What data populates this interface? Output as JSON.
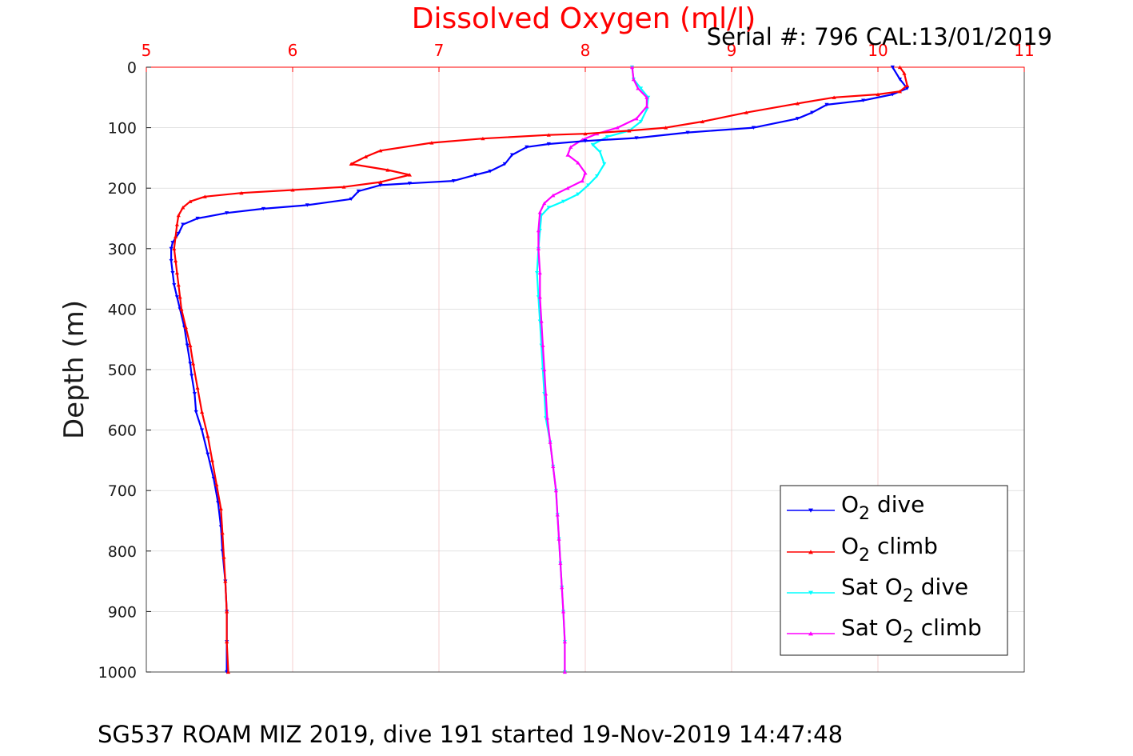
{
  "chart_data": {
    "type": "line",
    "title": "Dissolved Oxygen (ml/l)",
    "title_color": "#ff0000",
    "subtitle": "Serial #: 796  CAL:13/01/2019",
    "ylabel": "Depth (m)",
    "footer": "SG537 ROAM MIZ 2019, dive 191 started 19-Nov-2019 14:47:48",
    "xlim": [
      5,
      11
    ],
    "ylim": [
      0,
      1000
    ],
    "y_reversed": true,
    "x_axis_position": "top",
    "x_ticks": [
      5,
      6,
      7,
      8,
      9,
      10,
      11
    ],
    "y_ticks": [
      0,
      100,
      200,
      300,
      400,
      500,
      600,
      700,
      800,
      900,
      1000
    ],
    "grid": true,
    "legend_position": "bottom-right",
    "series": [
      {
        "name": "O2 dive",
        "legend_main": "O",
        "legend_sub": "2",
        "legend_rest": " dive",
        "color": "#0000ff",
        "marker": "triangle-down",
        "points": [
          [
            10.1,
            0
          ],
          [
            10.15,
            20
          ],
          [
            10.2,
            35
          ],
          [
            10.1,
            45
          ],
          [
            9.9,
            55
          ],
          [
            9.65,
            62
          ],
          [
            9.55,
            75
          ],
          [
            9.45,
            85
          ],
          [
            9.15,
            100
          ],
          [
            8.7,
            108
          ],
          [
            8.35,
            117
          ],
          [
            8.0,
            122
          ],
          [
            7.75,
            127
          ],
          [
            7.6,
            132
          ],
          [
            7.5,
            145
          ],
          [
            7.45,
            160
          ],
          [
            7.35,
            172
          ],
          [
            7.25,
            178
          ],
          [
            7.1,
            188
          ],
          [
            6.8,
            192
          ],
          [
            6.6,
            195
          ],
          [
            6.45,
            205
          ],
          [
            6.4,
            218
          ],
          [
            6.1,
            228
          ],
          [
            5.8,
            234
          ],
          [
            5.55,
            241
          ],
          [
            5.35,
            250
          ],
          [
            5.25,
            260
          ],
          [
            5.22,
            275
          ],
          [
            5.18,
            290
          ],
          [
            5.17,
            300
          ],
          [
            5.17,
            320
          ],
          [
            5.18,
            340
          ],
          [
            5.19,
            360
          ],
          [
            5.21,
            380
          ],
          [
            5.23,
            400
          ],
          [
            5.26,
            430
          ],
          [
            5.28,
            460
          ],
          [
            5.3,
            490
          ],
          [
            5.31,
            510
          ],
          [
            5.33,
            540
          ],
          [
            5.34,
            570
          ],
          [
            5.38,
            600
          ],
          [
            5.42,
            640
          ],
          [
            5.46,
            680
          ],
          [
            5.49,
            720
          ],
          [
            5.51,
            760
          ],
          [
            5.52,
            800
          ],
          [
            5.54,
            850
          ],
          [
            5.55,
            900
          ],
          [
            5.55,
            950
          ],
          [
            5.55,
            1000
          ]
        ]
      },
      {
        "name": "O2 climb",
        "legend_main": "O",
        "legend_sub": "2",
        "legend_rest": " climb",
        "color": "#ff0000",
        "marker": "triangle-up",
        "points": [
          [
            10.15,
            0
          ],
          [
            10.18,
            10
          ],
          [
            10.2,
            30
          ],
          [
            10.15,
            40
          ],
          [
            10.0,
            45
          ],
          [
            9.7,
            50
          ],
          [
            9.45,
            60
          ],
          [
            9.1,
            75
          ],
          [
            8.8,
            90
          ],
          [
            8.55,
            100
          ],
          [
            8.3,
            105
          ],
          [
            8.0,
            110
          ],
          [
            7.75,
            112
          ],
          [
            7.3,
            118
          ],
          [
            6.95,
            125
          ],
          [
            6.6,
            138
          ],
          [
            6.5,
            148
          ],
          [
            6.4,
            160
          ],
          [
            6.65,
            170
          ],
          [
            6.8,
            178
          ],
          [
            6.6,
            190
          ],
          [
            6.35,
            198
          ],
          [
            6.0,
            203
          ],
          [
            5.65,
            208
          ],
          [
            5.4,
            214
          ],
          [
            5.3,
            222
          ],
          [
            5.25,
            232
          ],
          [
            5.22,
            245
          ],
          [
            5.21,
            260
          ],
          [
            5.2,
            280
          ],
          [
            5.19,
            300
          ],
          [
            5.2,
            320
          ],
          [
            5.21,
            340
          ],
          [
            5.22,
            360
          ],
          [
            5.23,
            380
          ],
          [
            5.24,
            400
          ],
          [
            5.27,
            430
          ],
          [
            5.3,
            460
          ],
          [
            5.32,
            490
          ],
          [
            5.35,
            530
          ],
          [
            5.38,
            570
          ],
          [
            5.42,
            610
          ],
          [
            5.45,
            650
          ],
          [
            5.48,
            690
          ],
          [
            5.51,
            730
          ],
          [
            5.52,
            770
          ],
          [
            5.53,
            810
          ],
          [
            5.54,
            850
          ],
          [
            5.55,
            900
          ],
          [
            5.55,
            950
          ],
          [
            5.56,
            1000
          ]
        ]
      },
      {
        "name": "Sat O2 dive",
        "legend_main": "Sat O",
        "legend_sub": "2",
        "legend_rest": " dive",
        "color": "#00ffff",
        "marker": "triangle-down",
        "points": [
          [
            8.32,
            0
          ],
          [
            8.33,
            20
          ],
          [
            8.38,
            35
          ],
          [
            8.43,
            50
          ],
          [
            8.42,
            70
          ],
          [
            8.38,
            90
          ],
          [
            8.3,
            105
          ],
          [
            8.15,
            115
          ],
          [
            8.05,
            128
          ],
          [
            8.1,
            140
          ],
          [
            8.13,
            160
          ],
          [
            8.08,
            180
          ],
          [
            8.02,
            195
          ],
          [
            7.95,
            210
          ],
          [
            7.85,
            222
          ],
          [
            7.75,
            232
          ],
          [
            7.7,
            245
          ],
          [
            7.69,
            270
          ],
          [
            7.68,
            300
          ],
          [
            7.67,
            340
          ],
          [
            7.68,
            380
          ],
          [
            7.69,
            420
          ],
          [
            7.7,
            460
          ],
          [
            7.71,
            500
          ],
          [
            7.72,
            540
          ],
          [
            7.73,
            580
          ],
          [
            7.76,
            620
          ],
          [
            7.78,
            660
          ],
          [
            7.8,
            700
          ],
          [
            7.81,
            740
          ],
          [
            7.82,
            780
          ],
          [
            7.83,
            820
          ],
          [
            7.84,
            860
          ],
          [
            7.85,
            900
          ],
          [
            7.86,
            950
          ],
          [
            7.86,
            1000
          ]
        ]
      },
      {
        "name": "Sat O2 climb",
        "legend_main": "Sat O",
        "legend_sub": "2",
        "legend_rest": " climb",
        "color": "#ff00ff",
        "marker": "triangle-up",
        "points": [
          [
            8.32,
            0
          ],
          [
            8.33,
            20
          ],
          [
            8.36,
            35
          ],
          [
            8.42,
            50
          ],
          [
            8.42,
            65
          ],
          [
            8.35,
            85
          ],
          [
            8.22,
            100
          ],
          [
            8.08,
            110
          ],
          [
            7.98,
            120
          ],
          [
            7.9,
            132
          ],
          [
            7.88,
            145
          ],
          [
            7.95,
            158
          ],
          [
            8.0,
            175
          ],
          [
            7.98,
            188
          ],
          [
            7.88,
            200
          ],
          [
            7.78,
            212
          ],
          [
            7.72,
            225
          ],
          [
            7.69,
            240
          ],
          [
            7.68,
            270
          ],
          [
            7.68,
            300
          ],
          [
            7.69,
            340
          ],
          [
            7.69,
            380
          ],
          [
            7.7,
            420
          ],
          [
            7.71,
            460
          ],
          [
            7.72,
            500
          ],
          [
            7.73,
            540
          ],
          [
            7.74,
            580
          ],
          [
            7.76,
            620
          ],
          [
            7.78,
            660
          ],
          [
            7.8,
            700
          ],
          [
            7.81,
            740
          ],
          [
            7.82,
            780
          ],
          [
            7.83,
            820
          ],
          [
            7.84,
            860
          ],
          [
            7.85,
            900
          ],
          [
            7.86,
            950
          ],
          [
            7.86,
            1000
          ]
        ]
      }
    ]
  }
}
